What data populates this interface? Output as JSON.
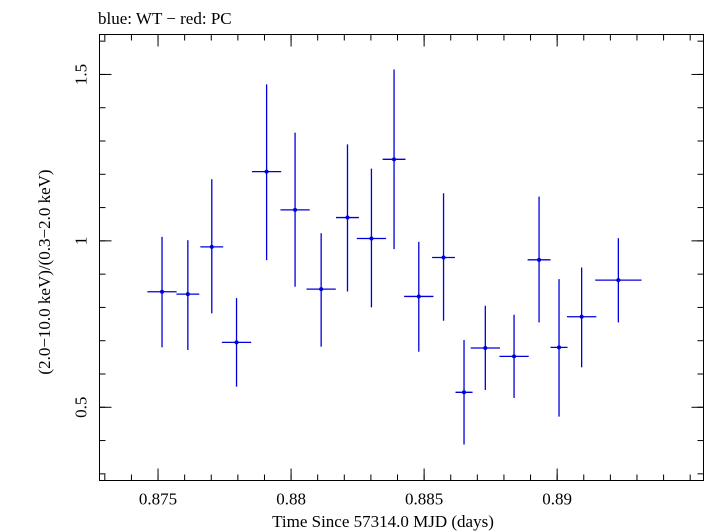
{
  "chart_data": {
    "type": "scatter",
    "title": "blue: WT − red: PC",
    "xlabel": "Time Since 57314.0 MJD (days)",
    "ylabel": "(2.0−10.0 keV)/(0.3−2.0 keV)",
    "xlim": [
      0.8728,
      0.8955
    ],
    "ylim": [
      0.28,
      1.62
    ],
    "xticks": [
      0.875,
      0.88,
      0.885,
      0.89
    ],
    "xtick_labels": [
      "0.875",
      "0.88",
      "0.885",
      "0.89"
    ],
    "yticks": [
      0.5,
      1.0,
      1.5
    ],
    "ytick_labels": [
      "0.5",
      "1",
      "1.5"
    ],
    "grid": false,
    "series": [
      {
        "color": "#0000dd",
        "points": [
          {
            "x": 0.87515,
            "y": 0.847,
            "xerr": 0.00055,
            "ylo": 0.68,
            "yhi": 1.012
          },
          {
            "x": 0.87612,
            "y": 0.84,
            "xerr": 0.00043,
            "ylo": 0.672,
            "yhi": 1.002
          },
          {
            "x": 0.87702,
            "y": 0.982,
            "xerr": 0.00043,
            "ylo": 0.782,
            "yhi": 1.185
          },
          {
            "x": 0.87795,
            "y": 0.695,
            "xerr": 0.00055,
            "ylo": 0.562,
            "yhi": 0.828
          },
          {
            "x": 0.87908,
            "y": 1.208,
            "xerr": 0.00055,
            "ylo": 0.942,
            "yhi": 1.47
          },
          {
            "x": 0.88015,
            "y": 1.093,
            "xerr": 0.00055,
            "ylo": 0.862,
            "yhi": 1.325
          },
          {
            "x": 0.88113,
            "y": 0.855,
            "xerr": 0.00055,
            "ylo": 0.682,
            "yhi": 1.023
          },
          {
            "x": 0.88212,
            "y": 1.07,
            "xerr": 0.00043,
            "ylo": 0.848,
            "yhi": 1.29
          },
          {
            "x": 0.88302,
            "y": 1.007,
            "xerr": 0.00055,
            "ylo": 0.8,
            "yhi": 1.217
          },
          {
            "x": 0.88387,
            "y": 1.245,
            "xerr": 0.00043,
            "ylo": 0.975,
            "yhi": 1.515
          },
          {
            "x": 0.8848,
            "y": 0.833,
            "xerr": 0.00055,
            "ylo": 0.667,
            "yhi": 0.997
          },
          {
            "x": 0.88573,
            "y": 0.95,
            "xerr": 0.00043,
            "ylo": 0.76,
            "yhi": 1.143
          },
          {
            "x": 0.8865,
            "y": 0.545,
            "xerr": 0.00032,
            "ylo": 0.388,
            "yhi": 0.702
          },
          {
            "x": 0.8873,
            "y": 0.678,
            "xerr": 0.00055,
            "ylo": 0.552,
            "yhi": 0.805
          },
          {
            "x": 0.88838,
            "y": 0.653,
            "xerr": 0.00055,
            "ylo": 0.528,
            "yhi": 0.778
          },
          {
            "x": 0.88932,
            "y": 0.943,
            "xerr": 0.00043,
            "ylo": 0.755,
            "yhi": 1.133
          },
          {
            "x": 0.89007,
            "y": 0.68,
            "xerr": 0.00032,
            "ylo": 0.472,
            "yhi": 0.885
          },
          {
            "x": 0.89092,
            "y": 0.772,
            "xerr": 0.00055,
            "ylo": 0.62,
            "yhi": 0.92
          },
          {
            "x": 0.8923,
            "y": 0.882,
            "xerr": 0.00087,
            "ylo": 0.755,
            "yhi": 1.008
          }
        ]
      }
    ]
  }
}
